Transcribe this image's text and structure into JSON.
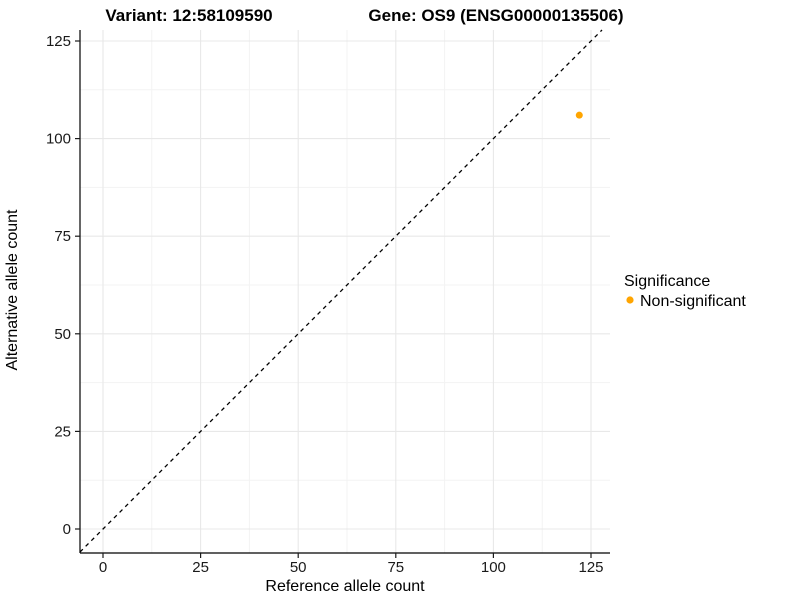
{
  "header": {
    "variant_title": "Variant: 12:58109590",
    "gene_title": "Gene: OS9 (ENSG00000135506)"
  },
  "chart_data": {
    "type": "scatter",
    "xlabel": "Reference allele count",
    "ylabel": "Alternative allele count",
    "xlim": [
      -6,
      130
    ],
    "ylim": [
      -6,
      128
    ],
    "x_ticks": [
      0,
      25,
      50,
      75,
      100,
      125
    ],
    "y_ticks": [
      0,
      25,
      50,
      75,
      100,
      125
    ],
    "x_minor_ticks": [
      12.5,
      37.5,
      62.5,
      87.5,
      112.5
    ],
    "y_minor_ticks": [
      12.5,
      37.5,
      62.5,
      87.5,
      112.5
    ],
    "grid": true,
    "points": [
      {
        "x": 122,
        "y": 106,
        "series": "Non-significant",
        "color": "#FFA500"
      }
    ],
    "abline": {
      "slope": 1,
      "intercept": 0,
      "style": "dashed",
      "color": "#000000"
    },
    "legend": {
      "title": "Significance",
      "position": "right",
      "entries": [
        {
          "label": "Non-significant",
          "color": "#FFA500"
        }
      ]
    }
  },
  "colors": {
    "point": "#FFA500",
    "major_grid": "#e8e8e8",
    "minor_grid": "#f3f3f3",
    "axis_line": "#000000",
    "tick_mark": "#1a1a1a",
    "background": "#ffffff"
  }
}
